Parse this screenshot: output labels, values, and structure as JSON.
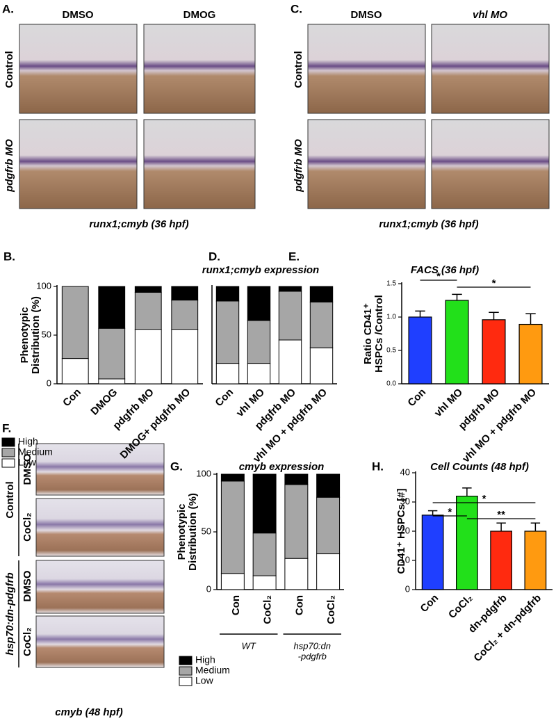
{
  "panels": {
    "A": {
      "label": "A.",
      "columns": [
        "DMSO",
        "DMOG"
      ],
      "rows": [
        "Control",
        "pdgfrb MO"
      ],
      "caption": "runx1;cmyb (36 hpf)"
    },
    "C": {
      "label": "C.",
      "columns": [
        "DMSO",
        "vhl MO"
      ],
      "rows": [
        "Control",
        "pdgfrb MO"
      ],
      "caption": "runx1;cmyb (36 hpf)"
    },
    "F": {
      "label": "F.",
      "groups": [
        "Control",
        "hsp70:dn-pdgfrb"
      ],
      "rows": [
        "DMSO",
        "CoCl₂",
        "DMSO",
        "CoCl₂"
      ],
      "caption": "cmyb (48 hpf)"
    }
  },
  "chart_data": [
    {
      "type": "stacked_bar",
      "label": "B.",
      "title": "runx1;cmyb expression",
      "ylabel": [
        "Phenotypic",
        "Distribution (%)"
      ],
      "categories": [
        "Con",
        "DMOG",
        "pdgfrb MO",
        "DMOG+ pdgfrb MO"
      ],
      "series": [
        {
          "name": "Low",
          "color": "#ffffff",
          "values": [
            26,
            5,
            56,
            56
          ]
        },
        {
          "name": "Medium",
          "color": "#a6a6a6",
          "values": [
            74,
            52,
            38,
            30
          ]
        },
        {
          "name": "High",
          "color": "#000000",
          "values": [
            0,
            43,
            6,
            14
          ]
        }
      ],
      "ylim": [
        0,
        100
      ],
      "yticks": [
        0,
        50,
        100
      ],
      "legend": true
    },
    {
      "type": "stacked_bar",
      "label": "D.",
      "categories": [
        "Con",
        "vhl MO",
        "pdgfrb MO",
        "vhl MO + pdgfrb MO"
      ],
      "series": [
        {
          "color": "#ffffff",
          "values": [
            21,
            21,
            45,
            37
          ]
        },
        {
          "color": "#a6a6a6",
          "values": [
            64,
            44,
            50,
            47
          ]
        },
        {
          "color": "#000000",
          "values": [
            15,
            35,
            5,
            16
          ]
        }
      ],
      "ylim": [
        0,
        100
      ],
      "legend": false
    },
    {
      "type": "bar",
      "label": "E.",
      "title": "FACS (36 hpf)",
      "ylabel": [
        "Ratio CD41⁺",
        "HSPCs /Control"
      ],
      "categories": [
        "Con",
        "vhl MO",
        "pdgfrb MO",
        "vhl MO + pdgfrb MO"
      ],
      "values": [
        1.0,
        1.25,
        0.96,
        0.89
      ],
      "errors": [
        0.09,
        0.09,
        0.11,
        0.16
      ],
      "colors": [
        "#1f3fff",
        "#22e01a",
        "#ff2a0f",
        "#ff9a10"
      ],
      "ylim": [
        0,
        1.5
      ],
      "yticks": [
        {
          "value": 0,
          "label": "0.0"
        },
        0.5,
        {
          "value": 1,
          "label": "1.0"
        },
        1.5
      ],
      "annotations": [
        {
          "text": "*",
          "from": 0,
          "to": 1
        },
        {
          "text": "*",
          "from": 1,
          "to": 3
        }
      ]
    },
    {
      "type": "stacked_bar",
      "label": "G.",
      "title": "cmyb expression",
      "ylabel": [
        "Phenotypic",
        "Distribution (%)"
      ],
      "categories": [
        "Con",
        "CoCl₂",
        "Con",
        "CoCl₂"
      ],
      "groups": [
        {
          "label": [
            "WT"
          ],
          "from": 0,
          "to": 1
        },
        {
          "label": [
            "hsp70:dn",
            "-pdgfrb"
          ],
          "from": 2,
          "to": 3
        }
      ],
      "series": [
        {
          "name": "Low",
          "color": "#ffffff",
          "values": [
            14,
            12,
            27,
            31
          ]
        },
        {
          "name": "Medium",
          "color": "#a6a6a6",
          "values": [
            80,
            37,
            64,
            49
          ]
        },
        {
          "name": "High",
          "color": "#000000",
          "values": [
            6,
            51,
            9,
            20
          ]
        }
      ],
      "ylim": [
        0,
        100
      ],
      "yticks": [
        0,
        50,
        100
      ],
      "legend": true
    },
    {
      "type": "bar",
      "label": "H.",
      "title": "Cell Counts (48 hpf)",
      "ylabel": [
        "CD41⁺ HSPCs [#]"
      ],
      "categories": [
        "Con",
        "CoCl₂",
        "dn-pdgfrb",
        "CoCl₂ + dn-pdgfrb"
      ],
      "values": [
        25.5,
        32,
        20,
        20
      ],
      "errors": [
        1.5,
        2.8,
        2.8,
        2.8
      ],
      "colors": [
        "#1f3fff",
        "#22e01a",
        "#ff2a0f",
        "#ff9a10"
      ],
      "ylim": [
        0,
        40
      ],
      "yticks": [
        0,
        10,
        20,
        30,
        40
      ],
      "annotations": [
        {
          "text": "*",
          "from": 0,
          "to": 3
        },
        {
          "text": "*",
          "from": 0,
          "to": 1
        },
        {
          "text": "**",
          "from": 1,
          "to": 3
        }
      ]
    }
  ]
}
